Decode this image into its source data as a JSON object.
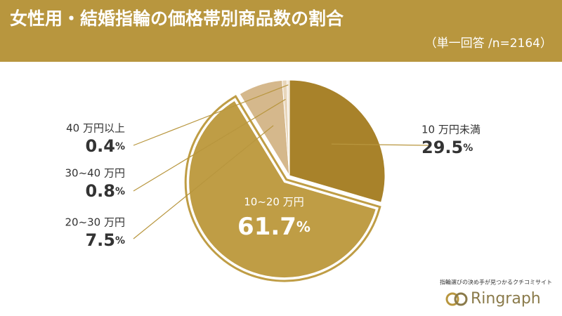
{
  "chart_data": {
    "type": "pie",
    "title": "女性用・結婚指輪の価格帯別商品数の割合",
    "subtitle": "（単一回答 /n=2164）",
    "categories": [
      "10 万円未満",
      "10~20 万円",
      "20~30 万円",
      "30~40 万円",
      "40 万円以上"
    ],
    "values": [
      29.5,
      61.7,
      7.5,
      0.8,
      0.4
    ],
    "value_labels": [
      "29.5%",
      "61.7%",
      "7.5%",
      "0.8%",
      "0.4%"
    ],
    "colors": [
      "#a8822a",
      "#bf9d45",
      "#d5b88c",
      "#e8d6bb",
      "#f1e6d4"
    ],
    "exploded": 1
  },
  "logo": {
    "tagline": "指輪選びの決め手が見つかるクチコミサイト",
    "name": "Ringraph"
  }
}
